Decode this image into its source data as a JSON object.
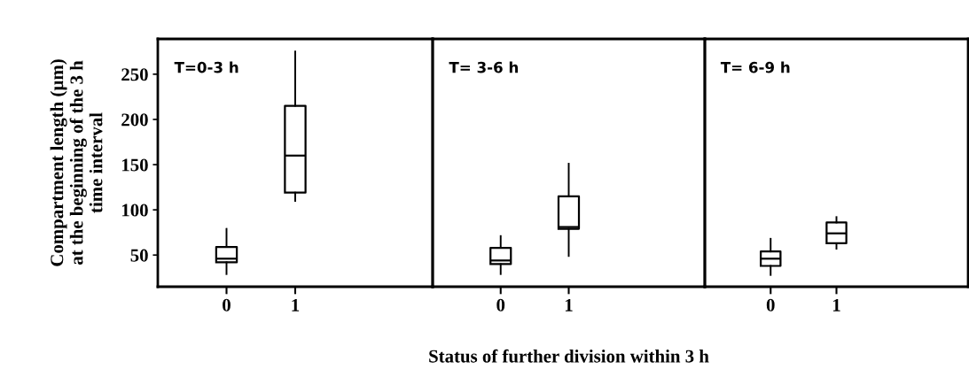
{
  "chart_data": [
    {
      "type": "box",
      "title": "T=0-3 h",
      "ylabel": "Compartment length (µm)\nat the beginning of the 3 h\ntime interval",
      "categories": [
        "0",
        "1"
      ],
      "ylim": [
        15,
        289
      ],
      "yticks": [
        50,
        100,
        150,
        200,
        250
      ],
      "boxes": [
        {
          "low": 29,
          "q1": 42,
          "median": 46,
          "q3": 59,
          "high": 79
        },
        {
          "low": 110,
          "q1": 119,
          "median": 160,
          "q3": 215,
          "high": 275
        }
      ]
    },
    {
      "type": "box",
      "title": "T= 3-6 h",
      "xlabel": "Status of further division within 3 h",
      "categories": [
        "0",
        "1"
      ],
      "ylim": [
        15,
        289
      ],
      "yticks": [
        50,
        100,
        150,
        200,
        250
      ],
      "tick_labels": "x",
      "boxes": [
        {
          "low": 29,
          "q1": 40,
          "median": 44,
          "q3": 58,
          "high": 71
        },
        {
          "low": 49,
          "q1": 79,
          "median": 81,
          "q3": 115,
          "high": 151
        }
      ]
    },
    {
      "type": "box",
      "title": "T= 6-9 h",
      "categories": [
        "0",
        "1"
      ],
      "ylim": [
        15,
        289
      ],
      "yticks": [
        50,
        100,
        150,
        200,
        250
      ],
      "tick_labels": "x",
      "boxes": [
        {
          "low": 28,
          "q1": 38,
          "median": 46,
          "q3": 54,
          "high": 68
        },
        {
          "low": 57,
          "q1": 63,
          "median": 74,
          "q3": 86,
          "high": 92
        }
      ]
    }
  ]
}
